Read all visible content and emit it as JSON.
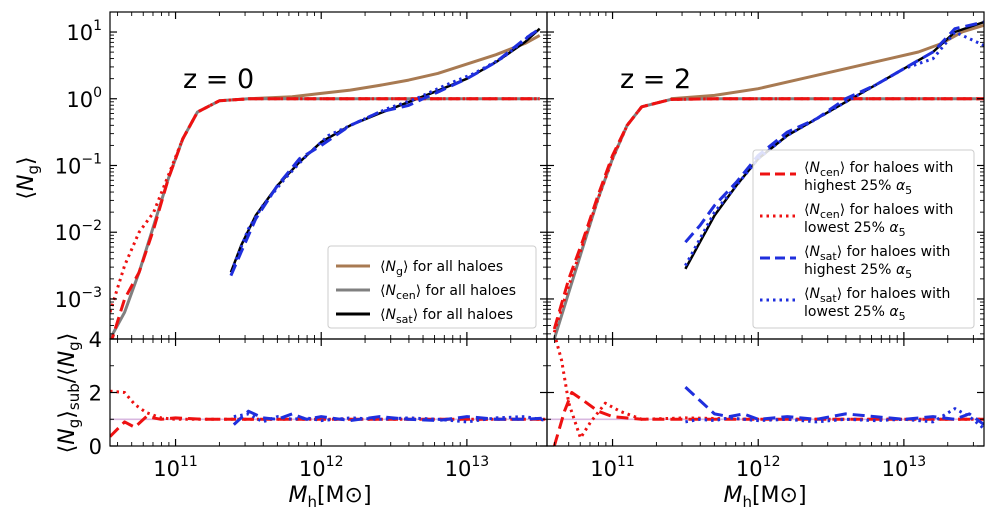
{
  "figure": {
    "top_ylabel": "⟨N_g⟩",
    "bottom_ylabel": "⟨N_g⟩_sub / ⟨N_g⟩",
    "xlabel": "M_h [M_⊙]",
    "xlabel_unit": "[M⊙]"
  },
  "panels": [
    {
      "label": "z = 0"
    },
    {
      "label": "z = 2"
    }
  ],
  "legend_left": [
    {
      "text_main": "⟨N_g⟩",
      "text_rest": " for all haloes",
      "color": "#a87a52",
      "style": "solid"
    },
    {
      "text_main": "⟨N_cen⟩",
      "text_rest": " for all haloes",
      "color": "#808080",
      "style": "solid"
    },
    {
      "text_main": "⟨N_sat⟩",
      "text_rest": " for all haloes",
      "color": "#000000",
      "style": "solid"
    }
  ],
  "legend_right": [
    {
      "line1_main": "⟨N_cen⟩",
      "line1_rest": " for haloes with",
      "line2": "highest 25% α5",
      "color": "#ee1111",
      "style": "dashed"
    },
    {
      "line1_main": "⟨N_cen⟩",
      "line1_rest": " for haloes with",
      "line2": "lowest 25% α5",
      "color": "#ee1111",
      "style": "dotted"
    },
    {
      "line1_main": "⟨N_sat⟩",
      "line1_rest": " for haloes with",
      "line2": "highest 25% α5",
      "color": "#1f2fdd",
      "style": "dashed"
    },
    {
      "line1_main": "⟨N_sat⟩",
      "line1_rest": " for haloes with",
      "line2": "lowest 25% α5",
      "color": "#1f2fdd",
      "style": "dotted"
    }
  ],
  "colors": {
    "ng_all": "#a87a52",
    "ncen_all": "#808080",
    "nsat_all": "#000000",
    "cen_sub": "#ee1111",
    "sat_sub": "#1f2fdd",
    "ratio_ref": "#d8b8e0"
  },
  "chart_data": [
    {
      "type": "line",
      "panel": "z = 0 (top)",
      "xscale": "log",
      "yscale": "log",
      "xlim": [
        10.55,
        13.55
      ],
      "ylim_log10": [
        -3.6,
        1.3
      ],
      "x_ticks": [
        "10^11",
        "10^12",
        "10^13"
      ],
      "y_ticks": [
        "10^-3",
        "10^-2",
        "10^-1",
        "10^0",
        "10^1"
      ],
      "series": [
        {
          "name": "⟨N_g⟩ for all haloes",
          "x_log": [
            11.5,
            11.8,
            12.0,
            12.2,
            12.4,
            12.6,
            12.8,
            13.0,
            13.2,
            13.4,
            13.5
          ],
          "y_log": [
            0.0,
            0.03,
            0.08,
            0.13,
            0.2,
            0.28,
            0.38,
            0.52,
            0.66,
            0.83,
            0.95
          ]
        },
        {
          "name": "⟨N_cen⟩ for all haloes",
          "x_log": [
            10.55,
            10.65,
            10.75,
            10.85,
            10.95,
            11.05,
            11.15,
            11.3,
            11.5,
            11.8,
            12.2,
            12.8,
            13.5
          ],
          "y_log": [
            -3.6,
            -3.2,
            -2.6,
            -1.9,
            -1.2,
            -0.6,
            -0.2,
            -0.03,
            0.0,
            0.0,
            0.0,
            0.0,
            0.0
          ]
        },
        {
          "name": "⟨N_sat⟩ for all haloes",
          "x_log": [
            11.38,
            11.45,
            11.55,
            11.7,
            11.85,
            12.0,
            12.2,
            12.4,
            12.6,
            12.8,
            13.0,
            13.2,
            13.4,
            13.5
          ],
          "y_log": [
            -2.6,
            -2.2,
            -1.75,
            -1.3,
            -0.95,
            -0.65,
            -0.4,
            -0.22,
            -0.05,
            0.12,
            0.3,
            0.55,
            0.85,
            1.05
          ]
        },
        {
          "name": "⟨N_cen⟩ highest 25% α5",
          "x_log": [
            10.55,
            10.65,
            10.75,
            10.85,
            10.95,
            11.05,
            11.15,
            11.3,
            11.5,
            11.8,
            12.2,
            12.8,
            13.5
          ],
          "y_log": [
            -3.7,
            -3.0,
            -2.6,
            -1.95,
            -1.2,
            -0.6,
            -0.2,
            -0.03,
            0.0,
            0.0,
            0.0,
            0.0,
            0.0
          ]
        },
        {
          "name": "⟨N_cen⟩ lowest 25% α5",
          "x_log": [
            10.55,
            10.65,
            10.75,
            10.85,
            10.95,
            11.05,
            11.15,
            11.3,
            11.5,
            11.8,
            12.2,
            12.8,
            13.5
          ],
          "y_log": [
            -3.2,
            -2.5,
            -2.0,
            -1.7,
            -1.15,
            -0.6,
            -0.2,
            -0.03,
            0.0,
            0.0,
            0.0,
            0.0,
            0.0
          ]
        },
        {
          "name": "⟨N_sat⟩ highest 25% α5",
          "x_log": [
            11.38,
            11.45,
            11.55,
            11.7,
            11.85,
            12.0,
            12.2,
            12.4,
            12.6,
            12.8,
            13.0,
            13.2,
            13.4,
            13.5
          ],
          "y_log": [
            -2.65,
            -2.3,
            -1.8,
            -1.3,
            -0.9,
            -0.7,
            -0.4,
            -0.2,
            -0.1,
            0.1,
            0.3,
            0.55,
            0.9,
            1.05
          ]
        },
        {
          "name": "⟨N_sat⟩ lowest 25% α5",
          "x_log": [
            11.4,
            11.5,
            11.6,
            11.75,
            11.9,
            12.05,
            12.25,
            12.45,
            12.65,
            12.85,
            13.05,
            13.25,
            13.45
          ],
          "y_log": [
            -2.5,
            -1.95,
            -1.6,
            -1.2,
            -0.85,
            -0.55,
            -0.35,
            -0.15,
            0.0,
            0.2,
            0.38,
            0.62,
            0.98
          ]
        }
      ]
    },
    {
      "type": "line",
      "panel": "z = 2 (top)",
      "xscale": "log",
      "yscale": "log",
      "xlim": [
        10.55,
        13.55
      ],
      "ylim_log10": [
        -3.6,
        1.3
      ],
      "series": [
        {
          "name": "⟨N_g⟩ for all haloes",
          "x_log": [
            11.4,
            11.7,
            12.0,
            12.3,
            12.6,
            12.9,
            13.1,
            13.25,
            13.4,
            13.55
          ],
          "y_log": [
            0.0,
            0.05,
            0.15,
            0.3,
            0.45,
            0.6,
            0.7,
            0.82,
            1.0,
            1.1
          ]
        },
        {
          "name": "⟨N_cen⟩ for all haloes",
          "x_log": [
            10.6,
            10.7,
            10.8,
            10.9,
            11.0,
            11.1,
            11.2,
            11.4,
            11.7,
            12.2,
            12.8,
            13.55
          ],
          "y_log": [
            -3.6,
            -2.9,
            -2.2,
            -1.5,
            -0.9,
            -0.4,
            -0.12,
            -0.01,
            0.0,
            0.0,
            0.0,
            0.0
          ]
        },
        {
          "name": "⟨N_sat⟩ for all haloes",
          "x_log": [
            11.5,
            11.6,
            11.7,
            11.85,
            12.0,
            12.2,
            12.4,
            12.6,
            12.8,
            13.0,
            13.2,
            13.35,
            13.55
          ],
          "y_log": [
            -2.55,
            -2.15,
            -1.75,
            -1.3,
            -0.9,
            -0.55,
            -0.3,
            -0.05,
            0.2,
            0.45,
            0.7,
            1.0,
            1.15
          ]
        },
        {
          "name": "⟨N_cen⟩ highest 25% α5",
          "x_log": [
            10.6,
            10.7,
            10.8,
            10.9,
            11.0,
            11.1,
            11.2,
            11.4,
            11.7,
            12.2,
            12.8,
            13.55
          ],
          "y_log": [
            -3.45,
            -2.7,
            -2.1,
            -1.45,
            -0.85,
            -0.4,
            -0.12,
            -0.01,
            0.0,
            0.0,
            0.0,
            0.0
          ]
        },
        {
          "name": "⟨N_cen⟩ lowest 25% α5",
          "x_log": [
            10.6,
            10.7,
            10.8,
            10.9,
            11.0,
            11.1,
            11.2,
            11.4,
            11.7,
            12.2,
            12.8,
            13.55
          ],
          "y_log": [
            -3.5,
            -2.8,
            -2.15,
            -1.5,
            -0.9,
            -0.4,
            -0.12,
            -0.01,
            0.0,
            0.0,
            0.0,
            0.0
          ]
        },
        {
          "name": "⟨N_sat⟩ highest 25% α5",
          "x_log": [
            11.5,
            11.6,
            11.7,
            11.85,
            12.0,
            12.2,
            12.4,
            12.6,
            12.8,
            13.0,
            13.2,
            13.35,
            13.55
          ],
          "y_log": [
            -2.15,
            -1.9,
            -1.6,
            -1.25,
            -0.85,
            -0.5,
            -0.3,
            0.0,
            0.2,
            0.45,
            0.7,
            1.05,
            1.15
          ]
        },
        {
          "name": "⟨N_sat⟩ lowest 25% α5",
          "x_log": [
            11.5,
            11.6,
            11.7,
            11.85,
            12.0,
            12.2,
            12.4,
            12.6,
            12.8,
            13.0,
            13.2,
            13.35,
            13.55
          ],
          "y_log": [
            -2.5,
            -2.1,
            -1.7,
            -1.3,
            -0.9,
            -0.55,
            -0.3,
            -0.05,
            0.2,
            0.45,
            0.6,
            1.0,
            0.8
          ]
        }
      ]
    },
    {
      "type": "line",
      "panel": "z = 0 (ratio)",
      "xscale": "log",
      "ylim": [
        0,
        4
      ],
      "y_ticks": [
        "0",
        "2",
        "4"
      ],
      "series": [
        {
          "name": "reference",
          "x_log": [
            10.55,
            13.55
          ],
          "y": [
            1.0,
            1.0
          ]
        },
        {
          "name": "⟨N_cen⟩ highest 25% α5",
          "x_log": [
            10.55,
            10.65,
            10.72,
            10.8,
            10.9,
            11.0,
            11.2,
            11.5,
            12.0,
            12.5,
            13.0,
            13.55
          ],
          "y": [
            0.35,
            0.9,
            0.7,
            1.1,
            1.0,
            1.05,
            1.0,
            1.0,
            1.0,
            1.0,
            1.0,
            1.0
          ]
        },
        {
          "name": "⟨N_cen⟩ lowest 25% α5",
          "x_log": [
            10.55,
            10.65,
            10.72,
            10.8,
            10.9,
            11.0,
            11.2,
            11.5,
            12.0,
            12.5,
            13.0,
            13.55
          ],
          "y": [
            2.05,
            2.0,
            1.55,
            1.25,
            1.05,
            1.0,
            1.0,
            1.0,
            1.0,
            1.0,
            1.0,
            1.0
          ]
        },
        {
          "name": "⟨N_sat⟩ highest 25% α5",
          "x_log": [
            11.4,
            11.5,
            11.6,
            11.7,
            11.8,
            11.9,
            12.0,
            12.2,
            12.4,
            12.6,
            12.8,
            13.0,
            13.2,
            13.4,
            13.55
          ],
          "y": [
            0.8,
            1.3,
            1.05,
            1.0,
            1.2,
            1.0,
            1.1,
            0.95,
            1.1,
            1.0,
            0.95,
            1.1,
            1.0,
            1.0,
            1.05
          ]
        },
        {
          "name": "⟨N_sat⟩ lowest 25% α5",
          "x_log": [
            11.4,
            11.5,
            11.6,
            11.7,
            11.8,
            11.9,
            12.0,
            12.2,
            12.4,
            12.6,
            12.8,
            13.0,
            13.2,
            13.4,
            13.55
          ],
          "y": [
            1.1,
            1.2,
            0.9,
            1.1,
            1.0,
            1.05,
            0.95,
            1.05,
            1.0,
            1.05,
            1.0,
            0.9,
            1.05,
            1.1,
            0.95
          ]
        }
      ]
    },
    {
      "type": "line",
      "panel": "z = 2 (ratio)",
      "xscale": "log",
      "ylim": [
        0,
        4
      ],
      "series": [
        {
          "name": "reference",
          "x_log": [
            10.55,
            13.55
          ],
          "y": [
            1.0,
            1.0
          ]
        },
        {
          "name": "⟨N_cen⟩ highest 25% α5",
          "x_log": [
            10.6,
            10.67,
            10.72,
            10.8,
            10.9,
            11.0,
            11.2,
            11.5,
            12.0,
            12.5,
            13.0,
            13.55
          ],
          "y": [
            0.0,
            1.3,
            2.0,
            1.7,
            1.3,
            1.1,
            1.0,
            1.0,
            1.0,
            1.0,
            1.0,
            1.0
          ]
        },
        {
          "name": "⟨N_cen⟩ lowest 25% α5",
          "x_log": [
            10.6,
            10.65,
            10.7,
            10.78,
            10.85,
            10.95,
            11.05,
            11.2,
            11.5,
            12.0,
            13.0,
            13.55
          ],
          "y": [
            4.2,
            3.2,
            1.6,
            0.3,
            0.9,
            1.6,
            1.3,
            1.0,
            1.05,
            1.0,
            1.0,
            1.0
          ]
        },
        {
          "name": "⟨N_sat⟩ highest 25% α5",
          "x_log": [
            11.5,
            11.6,
            11.7,
            11.8,
            11.9,
            12.0,
            12.2,
            12.4,
            12.6,
            12.8,
            13.0,
            13.2,
            13.35,
            13.45,
            13.55
          ],
          "y": [
            2.2,
            1.7,
            1.2,
            1.1,
            1.2,
            1.0,
            1.1,
            1.0,
            1.2,
            1.1,
            1.0,
            1.1,
            1.0,
            1.2,
            0.8
          ]
        },
        {
          "name": "⟨N_sat⟩ lowest 25% α5",
          "x_log": [
            11.5,
            11.6,
            11.7,
            11.8,
            11.9,
            12.0,
            12.2,
            12.4,
            12.6,
            12.8,
            13.0,
            13.2,
            13.35,
            13.45,
            13.55
          ],
          "y": [
            0.9,
            1.0,
            0.95,
            1.05,
            1.0,
            0.95,
            1.0,
            0.9,
            1.0,
            0.95,
            1.0,
            0.9,
            1.4,
            1.1,
            0.65
          ]
        }
      ]
    }
  ]
}
